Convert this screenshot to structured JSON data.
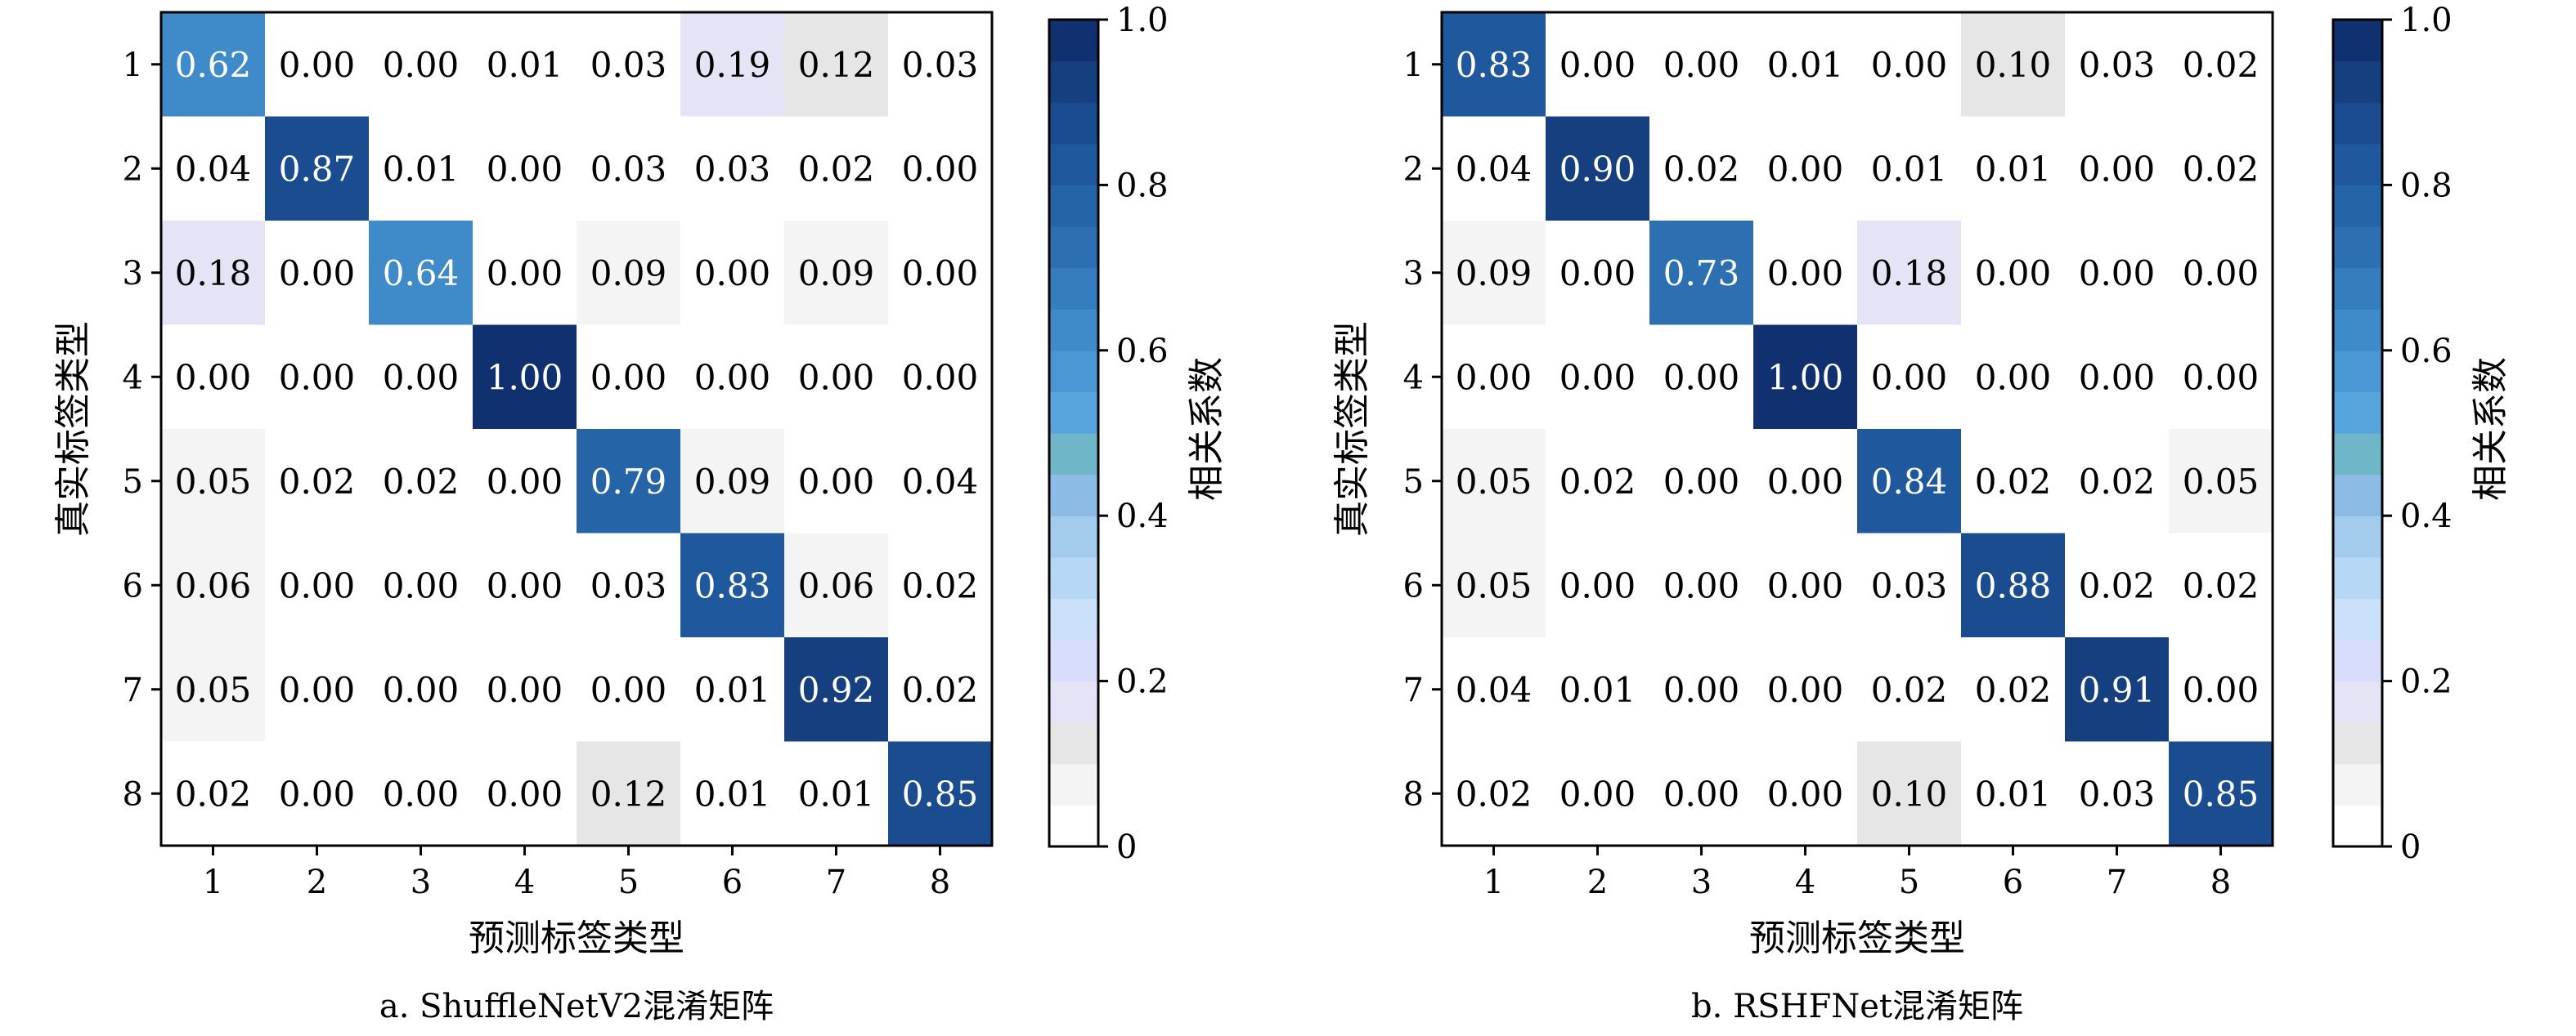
{
  "chart_data": [
    {
      "type": "heatmap",
      "caption": "a. ShuffleNetV2混淆矩阵",
      "xlabel": "预测标签类型",
      "ylabel": "真实标签类型",
      "x_categories": [
        "1",
        "2",
        "3",
        "4",
        "5",
        "6",
        "7",
        "8"
      ],
      "y_categories": [
        "1",
        "2",
        "3",
        "4",
        "5",
        "6",
        "7",
        "8"
      ],
      "colorbar": {
        "label": "相关系数",
        "range": [
          0,
          1.0
        ],
        "ticks": [
          "0",
          "0.2",
          "0.4",
          "0.6",
          "0.8",
          "1.0"
        ]
      },
      "matrix": [
        [
          "0.62",
          "0.00",
          "0.00",
          "0.01",
          "0.03",
          "0.19",
          "0.12",
          "0.03"
        ],
        [
          "0.04",
          "0.87",
          "0.01",
          "0.00",
          "0.03",
          "0.03",
          "0.02",
          "0.00"
        ],
        [
          "0.18",
          "0.00",
          "0.64",
          "0.00",
          "0.09",
          "0.00",
          "0.09",
          "0.00"
        ],
        [
          "0.00",
          "0.00",
          "0.00",
          "1.00",
          "0.00",
          "0.00",
          "0.00",
          "0.00"
        ],
        [
          "0.05",
          "0.02",
          "0.02",
          "0.00",
          "0.79",
          "0.09",
          "0.00",
          "0.04"
        ],
        [
          "0.06",
          "0.00",
          "0.00",
          "0.00",
          "0.03",
          "0.83",
          "0.06",
          "0.02"
        ],
        [
          "0.05",
          "0.00",
          "0.00",
          "0.00",
          "0.00",
          "0.01",
          "0.92",
          "0.02"
        ],
        [
          "0.02",
          "0.00",
          "0.00",
          "0.00",
          "0.12",
          "0.01",
          "0.01",
          "0.85"
        ]
      ]
    },
    {
      "type": "heatmap",
      "caption": "b. RSHFNet混淆矩阵",
      "xlabel": "预测标签类型",
      "ylabel": "真实标签类型",
      "x_categories": [
        "1",
        "2",
        "3",
        "4",
        "5",
        "6",
        "7",
        "8"
      ],
      "y_categories": [
        "1",
        "2",
        "3",
        "4",
        "5",
        "6",
        "7",
        "8"
      ],
      "colorbar": {
        "label": "相关系数",
        "range": [
          0,
          1.0
        ],
        "ticks": [
          "0",
          "0.2",
          "0.4",
          "0.6",
          "0.8",
          "1.0"
        ]
      },
      "matrix": [
        [
          "0.83",
          "0.00",
          "0.00",
          "0.01",
          "0.00",
          "0.10",
          "0.03",
          "0.02"
        ],
        [
          "0.04",
          "0.90",
          "0.02",
          "0.00",
          "0.01",
          "0.01",
          "0.00",
          "0.02"
        ],
        [
          "0.09",
          "0.00",
          "0.73",
          "0.00",
          "0.18",
          "0.00",
          "0.00",
          "0.00"
        ],
        [
          "0.00",
          "0.00",
          "0.00",
          "1.00",
          "0.00",
          "0.00",
          "0.00",
          "0.00"
        ],
        [
          "0.05",
          "0.02",
          "0.00",
          "0.00",
          "0.84",
          "0.02",
          "0.02",
          "0.05"
        ],
        [
          "0.05",
          "0.00",
          "0.00",
          "0.00",
          "0.03",
          "0.88",
          "0.02",
          "0.02"
        ],
        [
          "0.04",
          "0.01",
          "0.00",
          "0.00",
          "0.02",
          "0.02",
          "0.91",
          "0.00"
        ],
        [
          "0.02",
          "0.00",
          "0.00",
          "0.00",
          "0.10",
          "0.01",
          "0.03",
          "0.85"
        ]
      ]
    }
  ]
}
